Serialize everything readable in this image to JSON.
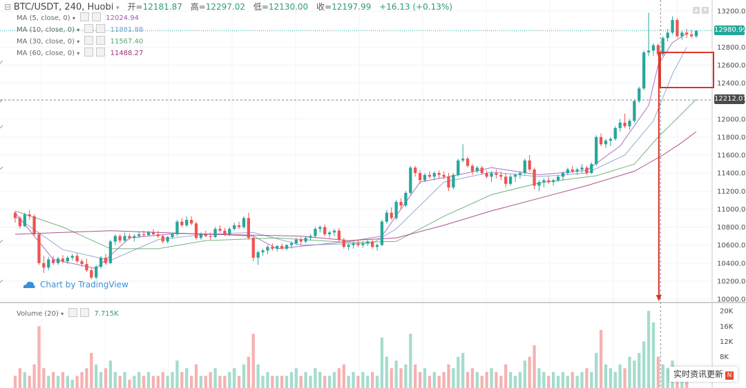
{
  "header": {
    "symbol": "BTC/USDT, 240, Huobi",
    "open_label": "开=",
    "open_value": "12181.87",
    "high_label": "高=",
    "high_value": "12297.02",
    "low_label": "低=",
    "low_value": "12130.00",
    "close_label": "收=",
    "close_value": "12197.99",
    "change": "+16.13 (+0.13%)"
  },
  "legends": [
    {
      "label": "MA (5, close, 0)",
      "value": "12024.94",
      "color": "#9b59b6"
    },
    {
      "label": "MA (10, close, 0)",
      "value": "11881.88",
      "color": "#7b9cc7"
    },
    {
      "label": "MA (30, close, 0)",
      "value": "11567.40",
      "color": "#5aa469"
    },
    {
      "label": "MA (60, close, 0)",
      "value": "11488.27",
      "color": "#a0307a"
    }
  ],
  "volume_legend": {
    "label": "Volume (20)",
    "value": "7.715K"
  },
  "current_price": "12980.99",
  "crosshair_price": "12212.07",
  "watermark": "Chart by TradingView",
  "news_badge": "实时资讯更新",
  "news_badge_icon": "N",
  "colors": {
    "up": "#26a69a",
    "down": "#ef5350",
    "accent": "#d93025",
    "ma5": "#9b59b6",
    "ma10": "#7b9cc7",
    "ma30": "#5aa469",
    "ma60": "#a0307a"
  },
  "chart_data": {
    "type": "candlestick",
    "price_axis": {
      "ticks": [
        "13200.00",
        "13000.00",
        "12800.00",
        "12600.00",
        "12400.00",
        "12200.00",
        "12000.00",
        "11800.00",
        "11600.00",
        "11400.00",
        "11200.00",
        "11000.00",
        "10800.00",
        "10600.00",
        "10400.00",
        "10200.00",
        "10000.00"
      ],
      "ylim": [
        10000,
        13200
      ]
    },
    "volume_axis": {
      "ticks": [
        "20K",
        "16K",
        "12K",
        "8K"
      ],
      "ylim": [
        0,
        22000
      ]
    },
    "highlight_box": {
      "y_range": [
        12350,
        12740
      ],
      "color": "#d93025"
    },
    "ohlc": [
      [
        10960,
        10980,
        10850,
        10900
      ],
      [
        10900,
        10920,
        10780,
        10810
      ],
      [
        10810,
        10960,
        10800,
        10940
      ],
      [
        10940,
        10990,
        10880,
        10920
      ],
      [
        10920,
        10940,
        10700,
        10720
      ],
      [
        10720,
        10740,
        10380,
        10400
      ],
      [
        10400,
        10480,
        10290,
        10350
      ],
      [
        10350,
        10470,
        10320,
        10440
      ],
      [
        10440,
        10480,
        10380,
        10400
      ],
      [
        10400,
        10470,
        10380,
        10450
      ],
      [
        10450,
        10490,
        10400,
        10420
      ],
      [
        10420,
        10480,
        10390,
        10460
      ],
      [
        10460,
        10500,
        10430,
        10480
      ],
      [
        10480,
        10510,
        10400,
        10420
      ],
      [
        10420,
        10440,
        10360,
        10390
      ],
      [
        10390,
        10450,
        10300,
        10320
      ],
      [
        10320,
        10350,
        10220,
        10240
      ],
      [
        10240,
        10380,
        10220,
        10360
      ],
      [
        10360,
        10480,
        10340,
        10460
      ],
      [
        10460,
        10500,
        10380,
        10400
      ],
      [
        10400,
        10660,
        10390,
        10640
      ],
      [
        10640,
        10720,
        10600,
        10700
      ],
      [
        10700,
        10720,
        10620,
        10650
      ],
      [
        10650,
        10740,
        10640,
        10700
      ],
      [
        10700,
        10730,
        10660,
        10680
      ],
      [
        10680,
        10720,
        10640,
        10700
      ],
      [
        10700,
        10750,
        10680,
        10720
      ],
      [
        10720,
        10760,
        10690,
        10710
      ],
      [
        10710,
        10760,
        10700,
        10740
      ],
      [
        10740,
        10780,
        10700,
        10720
      ],
      [
        10720,
        10760,
        10680,
        10700
      ],
      [
        10700,
        10720,
        10620,
        10640
      ],
      [
        10640,
        10700,
        10620,
        10690
      ],
      [
        10690,
        10740,
        10670,
        10720
      ],
      [
        10720,
        10880,
        10700,
        10860
      ],
      [
        10860,
        10900,
        10800,
        10820
      ],
      [
        10820,
        10920,
        10800,
        10880
      ],
      [
        10880,
        10920,
        10820,
        10840
      ],
      [
        10840,
        10860,
        10660,
        10680
      ],
      [
        10680,
        10740,
        10660,
        10720
      ],
      [
        10720,
        10760,
        10690,
        10700
      ],
      [
        10700,
        10740,
        10660,
        10690
      ],
      [
        10690,
        10800,
        10680,
        10780
      ],
      [
        10780,
        10820,
        10740,
        10760
      ],
      [
        10760,
        10790,
        10700,
        10720
      ],
      [
        10720,
        10800,
        10700,
        10780
      ],
      [
        10780,
        10850,
        10760,
        10820
      ],
      [
        10820,
        10860,
        10780,
        10800
      ],
      [
        10800,
        10920,
        10780,
        10900
      ],
      [
        10900,
        10960,
        10660,
        10680
      ],
      [
        10680,
        10700,
        10420,
        10460
      ],
      [
        10460,
        10540,
        10380,
        10520
      ],
      [
        10520,
        10560,
        10480,
        10540
      ],
      [
        10540,
        10600,
        10500,
        10580
      ],
      [
        10580,
        10620,
        10540,
        10560
      ],
      [
        10560,
        10600,
        10530,
        10590
      ],
      [
        10590,
        10620,
        10550,
        10560
      ],
      [
        10560,
        10610,
        10540,
        10600
      ],
      [
        10600,
        10640,
        10560,
        10620
      ],
      [
        10620,
        10680,
        10600,
        10660
      ],
      [
        10660,
        10690,
        10600,
        10640
      ],
      [
        10640,
        10700,
        10620,
        10680
      ],
      [
        10680,
        10720,
        10650,
        10700
      ],
      [
        10700,
        10800,
        10680,
        10780
      ],
      [
        10780,
        10820,
        10740,
        10800
      ],
      [
        10800,
        10830,
        10700,
        10720
      ],
      [
        10720,
        10760,
        10680,
        10740
      ],
      [
        10740,
        10780,
        10700,
        10760
      ],
      [
        10760,
        10790,
        10640,
        10660
      ],
      [
        10660,
        10680,
        10560,
        10580
      ],
      [
        10580,
        10620,
        10540,
        10600
      ],
      [
        10600,
        10640,
        10560,
        10620
      ],
      [
        10620,
        10660,
        10580,
        10600
      ],
      [
        10600,
        10640,
        10570,
        10620
      ],
      [
        10620,
        10660,
        10590,
        10640
      ],
      [
        10640,
        10660,
        10560,
        10580
      ],
      [
        10580,
        10620,
        10540,
        10600
      ],
      [
        10600,
        10880,
        10590,
        10860
      ],
      [
        10860,
        10990,
        10840,
        10960
      ],
      [
        10960,
        11020,
        10880,
        10900
      ],
      [
        10900,
        11100,
        10880,
        11080
      ],
      [
        11080,
        11120,
        11000,
        11040
      ],
      [
        11040,
        11200,
        11020,
        11180
      ],
      [
        11180,
        11480,
        11160,
        11460
      ],
      [
        11460,
        11480,
        11360,
        11400
      ],
      [
        11400,
        11430,
        11280,
        11320
      ],
      [
        11320,
        11400,
        11300,
        11380
      ],
      [
        11380,
        11420,
        11340,
        11360
      ],
      [
        11360,
        11420,
        11320,
        11400
      ],
      [
        11400,
        11430,
        11340,
        11380
      ],
      [
        11380,
        11420,
        11330,
        11360
      ],
      [
        11360,
        11400,
        11200,
        11240
      ],
      [
        11240,
        11400,
        11220,
        11380
      ],
      [
        11380,
        11560,
        11360,
        11540
      ],
      [
        11540,
        11720,
        11520,
        11560
      ],
      [
        11560,
        11580,
        11460,
        11480
      ],
      [
        11480,
        11500,
        11380,
        11420
      ],
      [
        11420,
        11480,
        11400,
        11460
      ],
      [
        11460,
        11480,
        11380,
        11400
      ],
      [
        11400,
        11430,
        11340,
        11360
      ],
      [
        11360,
        11420,
        11300,
        11400
      ],
      [
        11400,
        11440,
        11340,
        11380
      ],
      [
        11380,
        11420,
        11320,
        11360
      ],
      [
        11360,
        11400,
        11240,
        11280
      ],
      [
        11280,
        11380,
        11260,
        11360
      ],
      [
        11360,
        11400,
        11300,
        11380
      ],
      [
        11380,
        11420,
        11340,
        11400
      ],
      [
        11400,
        11560,
        11380,
        11540
      ],
      [
        11540,
        11600,
        11420,
        11440
      ],
      [
        11440,
        11460,
        11220,
        11260
      ],
      [
        11260,
        11320,
        11200,
        11300
      ],
      [
        11300,
        11340,
        11240,
        11320
      ],
      [
        11320,
        11360,
        11280,
        11300
      ],
      [
        11300,
        11340,
        11260,
        11320
      ],
      [
        11320,
        11380,
        11300,
        11360
      ],
      [
        11360,
        11420,
        11320,
        11400
      ],
      [
        11400,
        11460,
        11380,
        11440
      ],
      [
        11440,
        11480,
        11400,
        11420
      ],
      [
        11420,
        11460,
        11380,
        11440
      ],
      [
        11440,
        11500,
        11400,
        11460
      ],
      [
        11460,
        11480,
        11380,
        11400
      ],
      [
        11400,
        11520,
        11390,
        11500
      ],
      [
        11500,
        11820,
        11480,
        11800
      ],
      [
        11800,
        11840,
        11700,
        11720
      ],
      [
        11720,
        11780,
        11680,
        11760
      ],
      [
        11760,
        11800,
        11700,
        11780
      ],
      [
        11780,
        11920,
        11760,
        11900
      ],
      [
        11900,
        12000,
        11860,
        11960
      ],
      [
        11960,
        12060,
        11900,
        11920
      ],
      [
        11920,
        12000,
        11880,
        11980
      ],
      [
        11980,
        12220,
        11960,
        12200
      ],
      [
        12200,
        12360,
        12180,
        12340
      ],
      [
        12340,
        12760,
        12320,
        12740
      ],
      [
        12740,
        13180,
        12700,
        12760
      ],
      [
        12760,
        12840,
        12700,
        12820
      ],
      [
        12820,
        12840,
        12700,
        12720
      ],
      [
        12720,
        12920,
        12700,
        12900
      ],
      [
        12900,
        13000,
        12860,
        12960
      ],
      [
        12960,
        13140,
        12940,
        13100
      ],
      [
        13100,
        13120,
        12900,
        12920
      ],
      [
        12920,
        12980,
        12880,
        12960
      ],
      [
        12960,
        13000,
        12900,
        12940
      ],
      [
        12940,
        12990,
        12900,
        12920
      ],
      [
        12920,
        12990,
        12900,
        12980
      ]
    ],
    "volume": [
      3,
      5,
      4,
      3,
      6,
      16,
      5,
      3,
      4,
      3,
      4,
      3,
      2,
      3,
      4,
      5,
      9,
      6,
      4,
      5,
      7,
      4,
      3,
      4,
      2,
      3,
      4,
      3,
      4,
      3,
      3,
      4,
      3,
      4,
      7,
      4,
      5,
      3,
      6,
      3,
      3,
      4,
      5,
      3,
      3,
      4,
      5,
      3,
      6,
      8,
      14,
      6,
      3,
      4,
      3,
      3,
      3,
      3,
      4,
      5,
      3,
      4,
      3,
      5,
      4,
      3,
      3,
      4,
      5,
      6,
      3,
      4,
      3,
      4,
      3,
      4,
      3,
      13,
      8,
      5,
      7,
      5,
      6,
      14,
      6,
      4,
      5,
      3,
      4,
      3,
      4,
      6,
      5,
      8,
      9,
      4,
      5,
      4,
      3,
      4,
      5,
      4,
      3,
      6,
      4,
      3,
      4,
      7,
      8,
      11,
      5,
      4,
      3,
      4,
      3,
      4,
      3,
      4,
      3,
      4,
      5,
      4,
      9,
      15,
      6,
      5,
      4,
      6,
      5,
      8,
      7,
      9,
      12,
      20,
      17,
      8,
      6,
      5,
      7,
      5,
      4,
      3
    ],
    "ma_lines": [
      {
        "name": "MA (5, close, 0)",
        "color_key": "ma5",
        "points": [
          [
            0,
            10960
          ],
          [
            8,
            10440
          ],
          [
            17,
            10340
          ],
          [
            24,
            10680
          ],
          [
            34,
            10730
          ],
          [
            42,
            10720
          ],
          [
            50,
            10700
          ],
          [
            55,
            10560
          ],
          [
            70,
            10640
          ],
          [
            77,
            10700
          ],
          [
            85,
            11300
          ],
          [
            93,
            11380
          ],
          [
            100,
            11460
          ],
          [
            110,
            11380
          ],
          [
            120,
            11430
          ],
          [
            127,
            11700
          ],
          [
            133,
            12150
          ],
          [
            135,
            12600
          ],
          [
            138,
            12850
          ],
          [
            141,
            12950
          ]
        ]
      },
      {
        "name": "MA (10, close, 0)",
        "color_key": "ma10",
        "points": [
          [
            0,
            10920
          ],
          [
            10,
            10550
          ],
          [
            20,
            10430
          ],
          [
            30,
            10660
          ],
          [
            40,
            10720
          ],
          [
            50,
            10740
          ],
          [
            60,
            10600
          ],
          [
            75,
            10620
          ],
          [
            80,
            10780
          ],
          [
            90,
            11300
          ],
          [
            100,
            11410
          ],
          [
            110,
            11360
          ],
          [
            120,
            11400
          ],
          [
            128,
            11600
          ],
          [
            134,
            11980
          ],
          [
            138,
            12500
          ],
          [
            141,
            12800
          ]
        ]
      },
      {
        "name": "MA (30, close, 0)",
        "color_key": "ma30",
        "points": [
          [
            0,
            10980
          ],
          [
            10,
            10800
          ],
          [
            20,
            10560
          ],
          [
            30,
            10560
          ],
          [
            40,
            10650
          ],
          [
            55,
            10680
          ],
          [
            70,
            10630
          ],
          [
            80,
            10640
          ],
          [
            90,
            10920
          ],
          [
            100,
            11160
          ],
          [
            110,
            11290
          ],
          [
            122,
            11370
          ],
          [
            130,
            11500
          ],
          [
            135,
            11800
          ],
          [
            140,
            12060
          ],
          [
            143,
            12220
          ]
        ]
      },
      {
        "name": "MA (60, close, 0)",
        "color_key": "ma60",
        "points": [
          [
            0,
            10720
          ],
          [
            20,
            10760
          ],
          [
            40,
            10720
          ],
          [
            60,
            10700
          ],
          [
            70,
            10650
          ],
          [
            80,
            10680
          ],
          [
            90,
            10820
          ],
          [
            100,
            10980
          ],
          [
            110,
            11120
          ],
          [
            120,
            11260
          ],
          [
            130,
            11420
          ],
          [
            136,
            11600
          ],
          [
            140,
            11740
          ],
          [
            143,
            11860
          ]
        ]
      }
    ]
  }
}
